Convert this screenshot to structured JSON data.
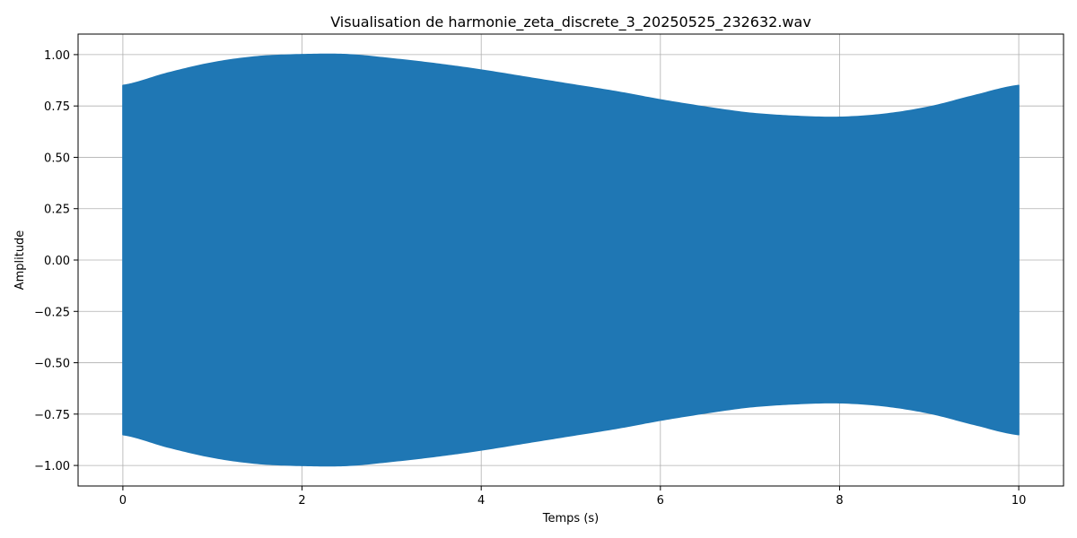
{
  "chart_data": {
    "type": "area",
    "title": "Visualisation de harmonie_zeta_discrete_3_20250525_232632.wav",
    "xlabel": "Temps (s)",
    "ylabel": "Amplitude",
    "xlim": [
      -0.5,
      10.5
    ],
    "ylim": [
      -1.1,
      1.1
    ],
    "grid": true,
    "x_ticks": [
      0,
      2,
      4,
      6,
      8,
      10
    ],
    "y_ticks": [
      1.0,
      0.75,
      0.5,
      0.25,
      0.0,
      -0.25,
      -0.5,
      -0.75,
      -1.0
    ],
    "x_tick_labels": [
      "0",
      "2",
      "4",
      "6",
      "8",
      "10"
    ],
    "y_tick_labels": [
      "1.00",
      "0.75",
      "0.50",
      "0.25",
      "0.00",
      "−0.25",
      "−0.50",
      "−0.75",
      "−1.00"
    ],
    "series": [
      {
        "color": "#1f77b4",
        "envelope_x": [
          0,
          0.5,
          1,
          1.5,
          2,
          2.5,
          3,
          3.5,
          4,
          4.5,
          5,
          5.5,
          6,
          6.5,
          7,
          7.5,
          8,
          8.5,
          9,
          9.5,
          10
        ],
        "envelope_upper": [
          0.85,
          0.91,
          0.96,
          0.99,
          1.0,
          1.0,
          0.98,
          0.955,
          0.925,
          0.89,
          0.855,
          0.82,
          0.78,
          0.745,
          0.715,
          0.7,
          0.695,
          0.71,
          0.745,
          0.8,
          0.85
        ],
        "envelope_lower": [
          -0.85,
          -0.91,
          -0.96,
          -0.99,
          -1.0,
          -1.0,
          -0.98,
          -0.955,
          -0.925,
          -0.89,
          -0.855,
          -0.82,
          -0.78,
          -0.745,
          -0.715,
          -0.7,
          -0.695,
          -0.71,
          -0.745,
          -0.8,
          -0.85
        ]
      }
    ]
  }
}
